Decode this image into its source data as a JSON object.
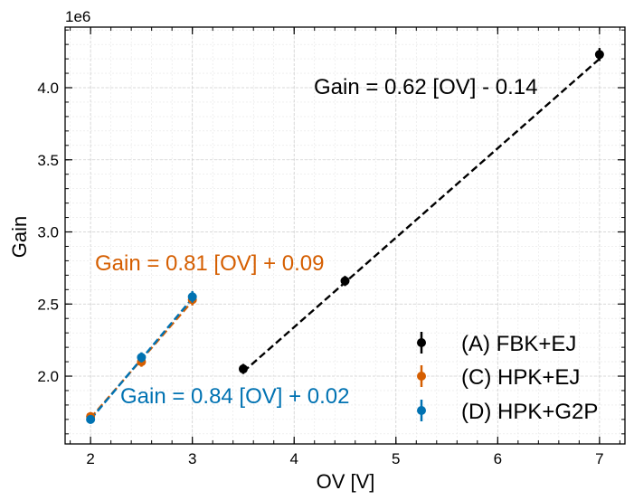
{
  "chart_data": {
    "type": "scatter",
    "title": "",
    "xlabel": "OV [V]",
    "ylabel": "Gain",
    "offset_label": "1e6",
    "xlim": [
      1.75,
      7.25
    ],
    "ylim": [
      1.53,
      4.42
    ],
    "x_ticks": [
      "2",
      "3",
      "4",
      "5",
      "6",
      "7"
    ],
    "y_ticks": [
      "2.0",
      "2.5",
      "3.0",
      "3.5",
      "4.0"
    ],
    "grid": true,
    "legend_position": "lower-right",
    "series": [
      {
        "name": "(A) FBK+EJ",
        "color": "#000000",
        "points": [
          {
            "x": 3.5,
            "y": 2.05,
            "err": 0.035
          },
          {
            "x": 4.5,
            "y": 2.66,
            "err": 0.035
          },
          {
            "x": 7.0,
            "y": 4.23,
            "err": 0.045
          }
        ],
        "fit": {
          "slope": 0.62,
          "intercept": -0.14,
          "x_range": [
            3.5,
            7.0
          ]
        },
        "fit_label": "Gain = 0.62 [OV] - 0.14"
      },
      {
        "name": "(C) HPK+EJ",
        "color": "#d55e00",
        "points": [
          {
            "x": 2.0,
            "y": 1.72,
            "err": 0.03
          },
          {
            "x": 2.5,
            "y": 2.1,
            "err": 0.035
          },
          {
            "x": 3.0,
            "y": 2.53,
            "err": 0.04
          }
        ],
        "fit": {
          "slope": 0.81,
          "intercept": 0.09,
          "x_range": [
            2.0,
            3.0
          ]
        },
        "fit_label": "Gain = 0.81 [OV] + 0.09"
      },
      {
        "name": "(D) HPK+G2P",
        "color": "#0072b2",
        "points": [
          {
            "x": 2.0,
            "y": 1.7,
            "err": 0.03
          },
          {
            "x": 2.5,
            "y": 2.13,
            "err": 0.035
          },
          {
            "x": 3.0,
            "y": 2.55,
            "err": 0.04
          }
        ],
        "fit": {
          "slope": 0.84,
          "intercept": 0.02,
          "x_range": [
            2.0,
            3.0
          ]
        },
        "fit_label": "Gain = 0.84 [OV] + 0.02"
      }
    ]
  }
}
